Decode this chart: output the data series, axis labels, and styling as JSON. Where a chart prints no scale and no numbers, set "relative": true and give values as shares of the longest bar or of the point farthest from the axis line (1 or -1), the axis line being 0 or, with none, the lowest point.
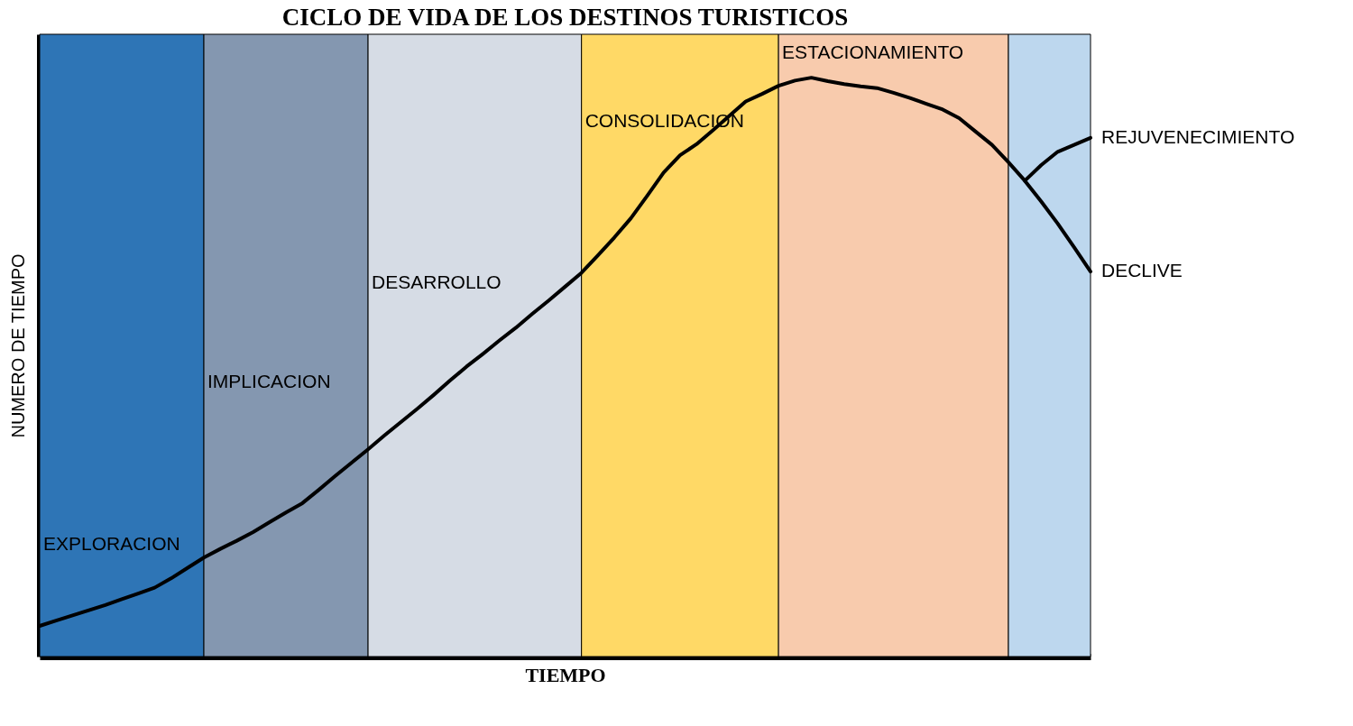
{
  "chart_data": {
    "type": "line",
    "title": "CICLO DE VIDA DE LOS DESTINOS TURISTICOS",
    "xlabel": "TIEMPO",
    "ylabel": "NUMERO DE TIEMPO",
    "relative": true,
    "categories": [
      null,
      null,
      null,
      null,
      null,
      null,
      null,
      null,
      null,
      null,
      null,
      null,
      null,
      null,
      null,
      null,
      null,
      null,
      null,
      null,
      null,
      null,
      null,
      null,
      null,
      null,
      null,
      null,
      null,
      null,
      null,
      null,
      null,
      null,
      null,
      null,
      null,
      null,
      null,
      null,
      null,
      null,
      null,
      null,
      null,
      null,
      null,
      null,
      null,
      null,
      null,
      null,
      null,
      null,
      null,
      null,
      null,
      null,
      null,
      null,
      null,
      null,
      null,
      null,
      null
    ],
    "series": [
      {
        "name": "DECLIVE",
        "color": "#000000",
        "values": [
          0.053,
          0.062,
          0.071,
          0.08,
          0.089,
          0.099,
          0.109,
          0.119,
          0.135,
          0.153,
          0.171,
          0.186,
          0.2,
          0.215,
          0.232,
          0.249,
          0.265,
          0.288,
          0.312,
          0.335,
          0.358,
          0.382,
          0.405,
          0.428,
          0.452,
          0.477,
          0.501,
          0.523,
          0.546,
          0.568,
          0.592,
          0.615,
          0.639,
          0.663,
          0.693,
          0.724,
          0.757,
          0.796,
          0.836,
          0.866,
          0.885,
          0.909,
          0.934,
          0.959,
          0.972,
          0.986,
          0.995,
          1.0,
          0.994,
          0.989,
          0.985,
          0.982,
          0.974,
          0.965,
          0.955,
          0.945,
          0.93,
          0.907,
          0.884,
          0.854,
          0.822,
          0.786,
          0.748,
          0.707,
          0.665
        ]
      },
      {
        "name": "REJUVENECIMIENTO",
        "color": "#000000",
        "values": [
          null,
          null,
          null,
          null,
          null,
          null,
          null,
          null,
          null,
          null,
          null,
          null,
          null,
          null,
          null,
          null,
          null,
          null,
          null,
          null,
          null,
          null,
          null,
          null,
          null,
          null,
          null,
          null,
          null,
          null,
          null,
          null,
          null,
          null,
          null,
          null,
          null,
          null,
          null,
          null,
          null,
          null,
          null,
          null,
          null,
          null,
          null,
          null,
          null,
          null,
          null,
          null,
          null,
          null,
          null,
          null,
          null,
          null,
          null,
          null,
          0.822,
          0.849,
          0.872,
          0.884,
          0.896
        ]
      }
    ],
    "annotations": [
      "EXPLORACION",
      "IMPLICACION",
      "DESARROLLO",
      "CONSOLIDACION",
      "ESTACIONAMIENTO"
    ]
  }
}
